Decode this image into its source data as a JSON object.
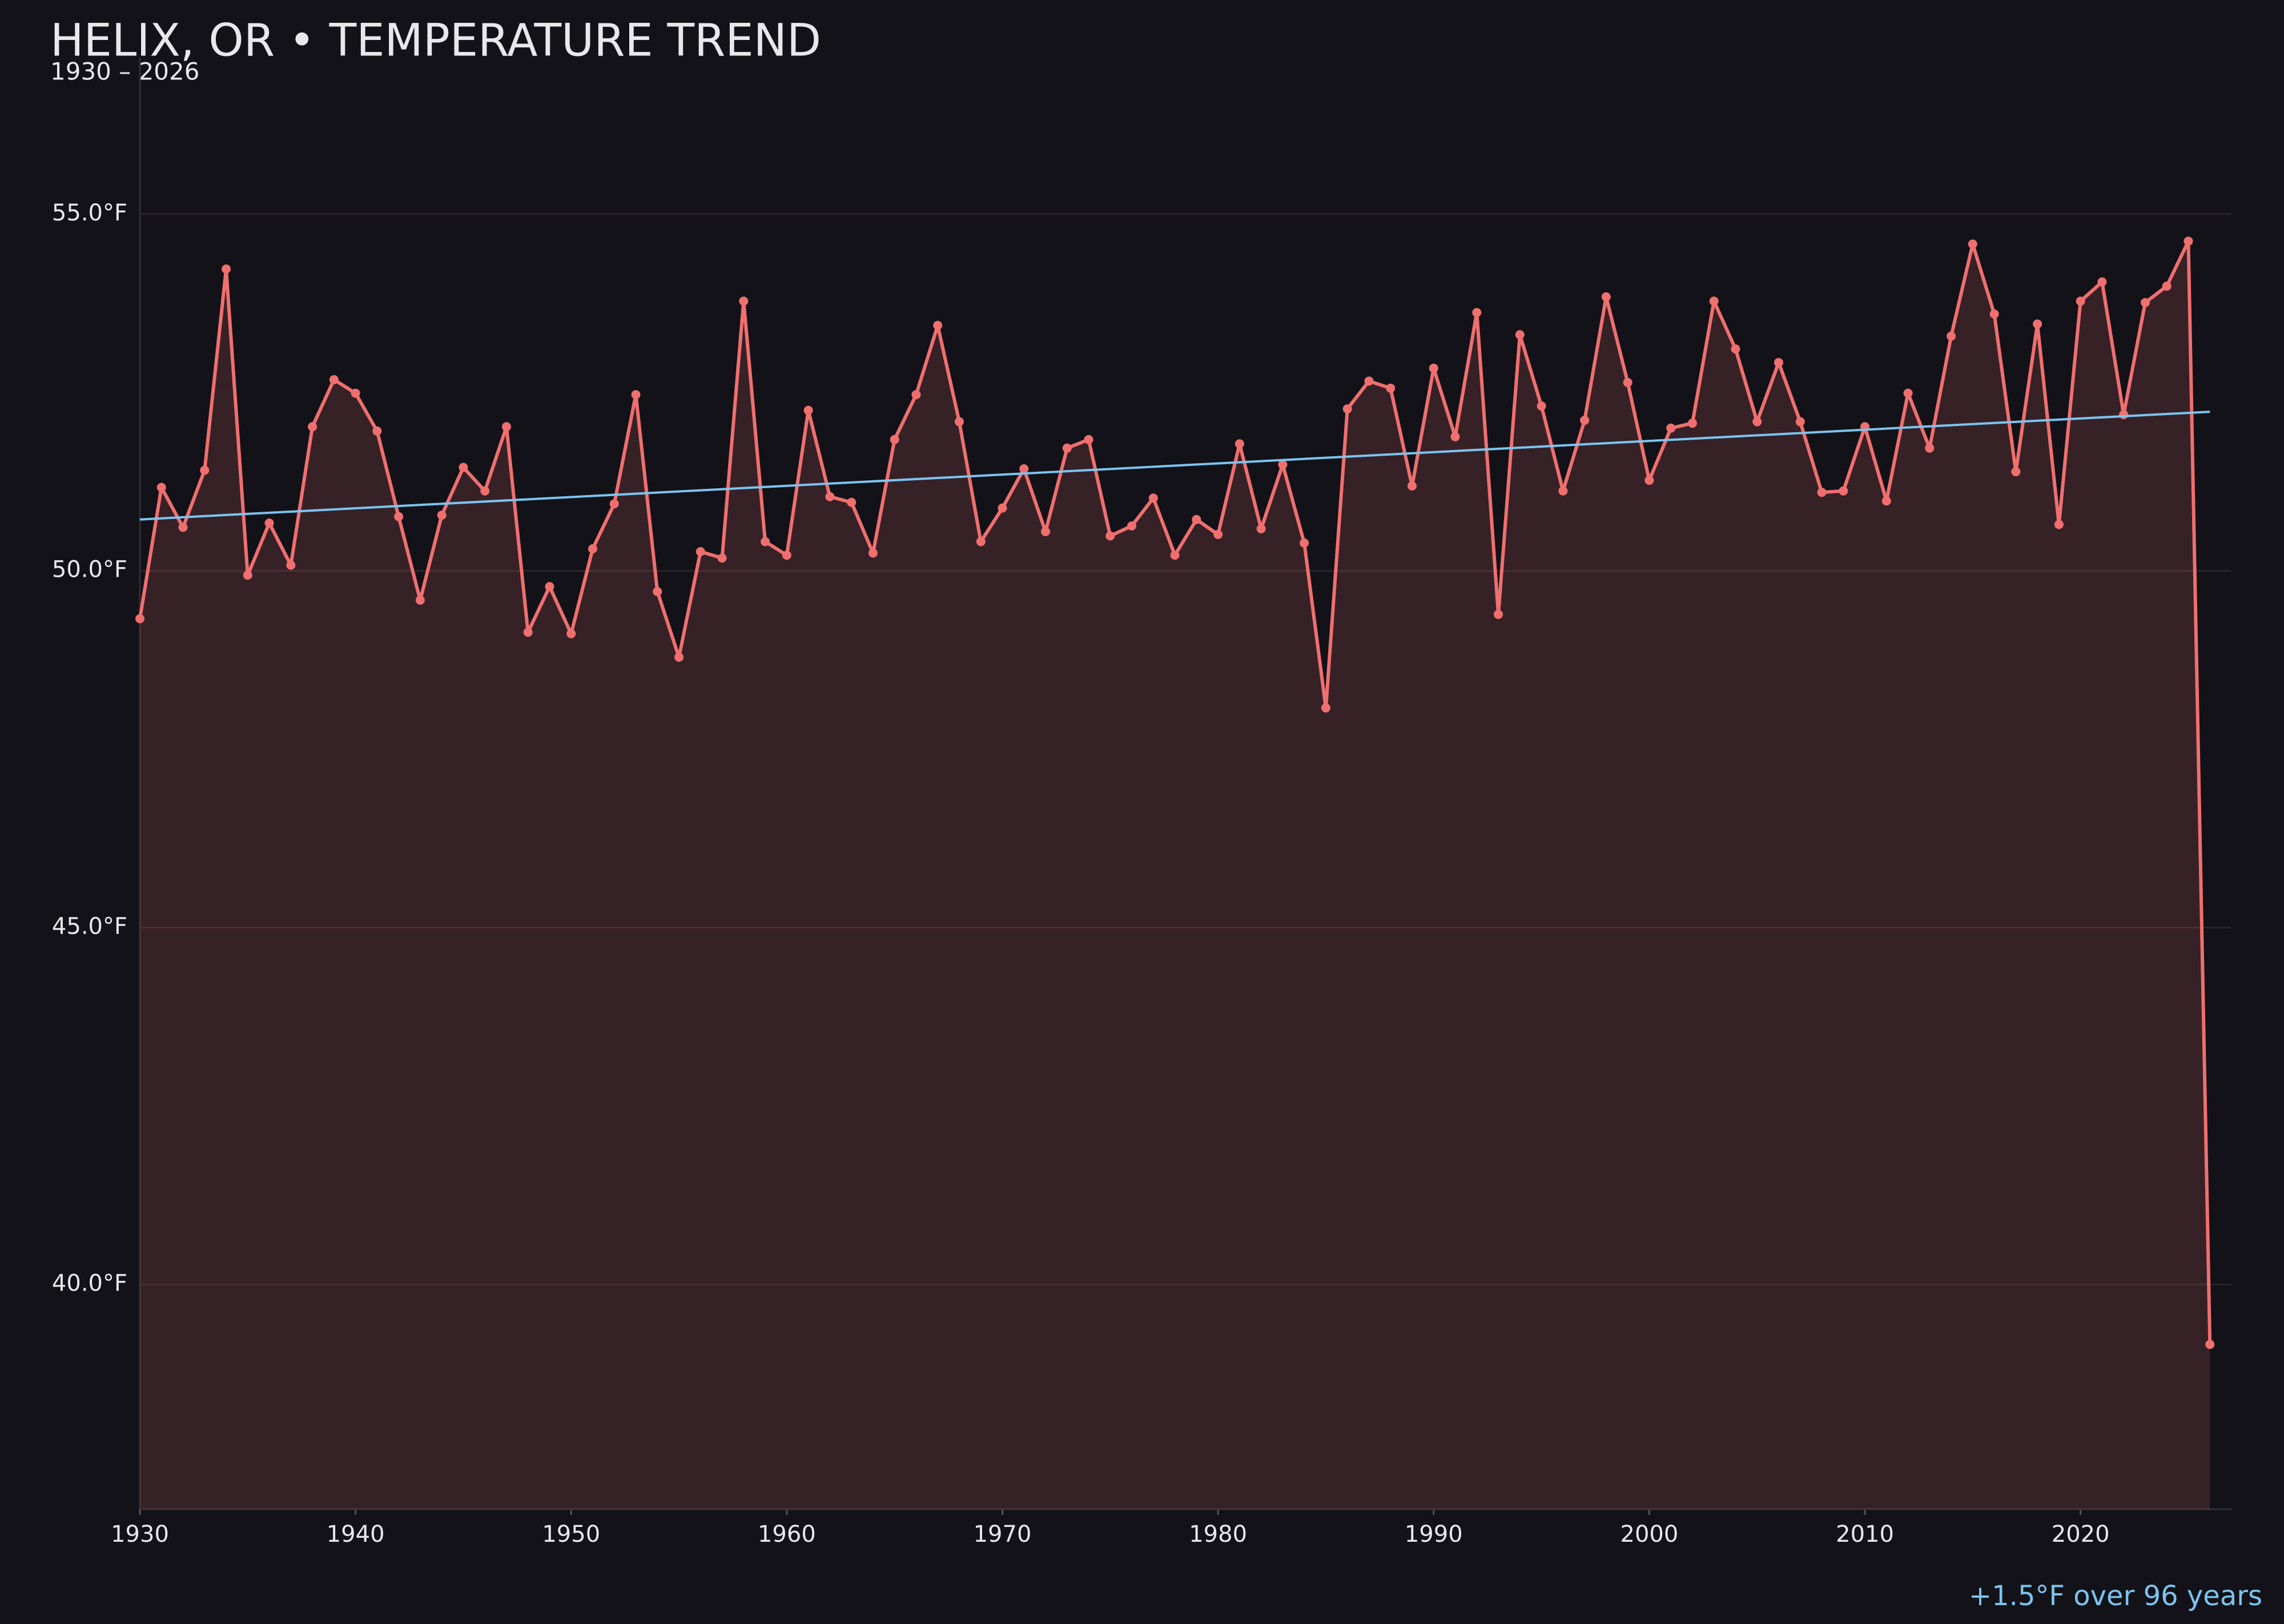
{
  "chart_data": {
    "type": "area-line",
    "title": "HELIX, OR • TEMPERATURE TREND",
    "subtitle": "1930 – 2026",
    "annotation": "+1.5°F over 96 years",
    "x": [
      1930,
      1931,
      1932,
      1933,
      1934,
      1935,
      1936,
      1937,
      1938,
      1939,
      1940,
      1941,
      1942,
      1943,
      1944,
      1945,
      1946,
      1947,
      1948,
      1949,
      1950,
      1951,
      1952,
      1953,
      1954,
      1955,
      1956,
      1957,
      1958,
      1959,
      1960,
      1961,
      1962,
      1963,
      1964,
      1965,
      1966,
      1967,
      1968,
      1969,
      1970,
      1971,
      1972,
      1973,
      1974,
      1975,
      1976,
      1977,
      1978,
      1979,
      1980,
      1981,
      1982,
      1983,
      1984,
      1985,
      1986,
      1987,
      1988,
      1989,
      1990,
      1991,
      1992,
      1993,
      1994,
      1995,
      1996,
      1997,
      1998,
      1999,
      2000,
      2001,
      2002,
      2003,
      2004,
      2005,
      2006,
      2007,
      2008,
      2009,
      2010,
      2011,
      2012,
      2013,
      2014,
      2015,
      2016,
      2017,
      2018,
      2019,
      2020,
      2021,
      2022,
      2023,
      2024,
      2025,
      2026
    ],
    "series": [
      {
        "color": "#ef6f6f",
        "values": [
          49.33,
          51.17,
          50.61,
          51.41,
          54.23,
          49.94,
          50.67,
          50.08,
          52.02,
          52.68,
          52.49,
          51.96,
          50.76,
          49.59,
          50.78,
          51.45,
          51.12,
          52.02,
          49.14,
          49.78,
          49.12,
          50.31,
          50.94,
          52.47,
          49.71,
          48.79,
          50.27,
          50.18,
          53.78,
          50.41,
          50.22,
          52.25,
          51.04,
          50.96,
          50.25,
          51.84,
          52.47,
          53.44,
          52.09,
          50.41,
          50.88,
          51.43,
          50.55,
          51.72,
          51.84,
          50.49,
          50.63,
          51.02,
          50.22,
          50.72,
          50.51,
          51.78,
          50.59,
          51.49,
          50.39,
          48.08,
          52.27,
          52.66,
          52.56,
          51.19,
          52.84,
          51.88,
          53.62,
          49.39,
          53.31,
          52.31,
          51.12,
          52.11,
          53.84,
          52.64,
          51.27,
          52.0,
          52.07,
          53.78,
          53.11,
          52.09,
          52.92,
          52.09,
          51.1,
          51.12,
          52.02,
          50.98,
          52.49,
          51.72,
          53.29,
          54.58,
          53.6,
          51.39,
          53.46,
          50.65,
          53.78,
          54.05,
          52.19,
          53.76,
          53.99,
          54.62,
          39.16
        ]
      }
    ],
    "trend": {
      "color": "#7cc4f0",
      "x": [
        1930,
        2026
      ],
      "values": [
        50.72,
        52.23
      ]
    },
    "xlim": [
      1930,
      2027
    ],
    "ylim": [
      36.85,
      57.2
    ],
    "xticks": [
      1930,
      1940,
      1950,
      1960,
      1970,
      1980,
      1990,
      2000,
      2010,
      2020
    ],
    "yticks": [
      {
        "value": 40,
        "label": "40.0°F"
      },
      {
        "value": 45,
        "label": "45.0°F"
      },
      {
        "value": 50,
        "label": "50.0°F"
      },
      {
        "value": 55,
        "label": "55.0°F"
      }
    ],
    "grid": true
  }
}
